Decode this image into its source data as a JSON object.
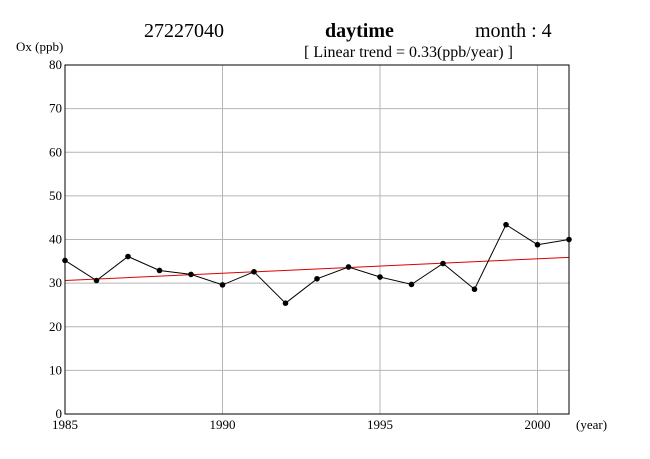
{
  "header": {
    "station": "27227040",
    "period": "daytime",
    "month": "month : 4",
    "trend": "[ Linear trend = 0.33(ppb/year) ]"
  },
  "chart_data": {
    "type": "line",
    "ylabel": "Ox (ppb)",
    "xlabel": "(year)",
    "xlim": [
      1985,
      2001
    ],
    "ylim": [
      0,
      80
    ],
    "x_ticks": [
      1985,
      1990,
      1995,
      2000
    ],
    "y_ticks": [
      0,
      10,
      20,
      30,
      40,
      50,
      60,
      70,
      80
    ],
    "grid": true,
    "colors": {
      "series": "#000000",
      "trend": "#dd0000",
      "grid": "#b4b4b4"
    },
    "series": [
      {
        "x": [
          1985,
          1986,
          1987,
          1988,
          1989,
          1990,
          1991,
          1992,
          1993,
          1994,
          1995,
          1996,
          1997,
          1998,
          1999,
          2000,
          2001
        ],
        "values": [
          35.2,
          30.6,
          36.1,
          32.9,
          32.0,
          29.6,
          32.6,
          25.4,
          31.0,
          33.7,
          31.4,
          29.7,
          34.5,
          28.6,
          43.4,
          38.8,
          40.0
        ]
      }
    ],
    "trend_line": {
      "x": [
        1985,
        2001
      ],
      "values": [
        30.6,
        35.9
      ]
    }
  }
}
